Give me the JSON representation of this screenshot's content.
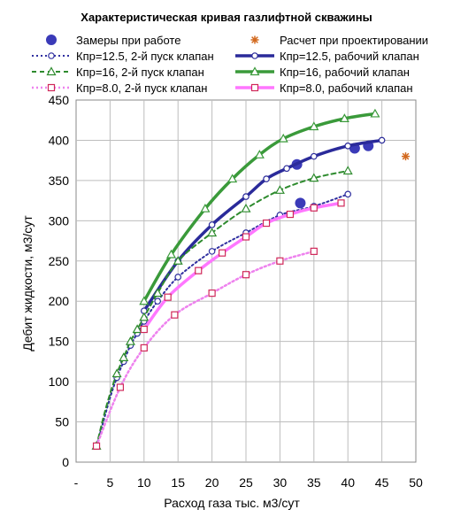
{
  "chart_data": {
    "type": "scatter",
    "title": "Характеристическая кривая газлифтной скважины",
    "xlabel": "Расход газа тыс. м3/сут",
    "ylabel": "Дебит жидкости,  м3/сут",
    "xlim": [
      0,
      50
    ],
    "ylim": [
      0,
      450
    ],
    "x_ticks": [
      "-",
      "5",
      "10",
      "15",
      "20",
      "25",
      "30",
      "35",
      "40",
      "45",
      "50"
    ],
    "y_ticks": [
      "0",
      "50",
      "100",
      "150",
      "200",
      "250",
      "300",
      "350",
      "400",
      "450"
    ],
    "grid": true,
    "legend_position": "top",
    "legend": [
      "Замеры при работе",
      "Расчет при проектировании",
      "Кпр=12.5, 2-й пуск клапан",
      "Кпр=12.5, рабочий клапан",
      "Кпр=16, 2-й пуск клапан",
      "Кпр=16, рабочий клапан",
      "Кпр=8.0, 2-й пуск клапан",
      "Кпр=8.0, рабочий клапан"
    ],
    "series": [
      {
        "name": "Замеры при работе",
        "color": "#3a3ab8",
        "marker": "dot",
        "line": "none",
        "x": [
          32.5,
          33.0,
          41.0,
          43.0
        ],
        "y": [
          370,
          322,
          390,
          393
        ]
      },
      {
        "name": "Расчет при проектировании",
        "color": "#d2691e",
        "marker": "star",
        "line": "none",
        "x": [
          48.5
        ],
        "y": [
          380
        ]
      },
      {
        "name": "Кпр=12.5, 2-й пуск клапан",
        "color": "#3030a0",
        "marker": "circle-open",
        "line": "dotted",
        "width": 2,
        "x": [
          3,
          4,
          5,
          6,
          7,
          8,
          9,
          10,
          12,
          15,
          20,
          25,
          30,
          35,
          40
        ],
        "y": [
          20,
          50,
          80,
          105,
          125,
          145,
          160,
          175,
          200,
          230,
          262,
          285,
          307,
          318,
          333
        ]
      },
      {
        "name": "Кпр=12.5, рабочий клапан",
        "color": "#2a2a9a",
        "marker": "circle-open",
        "line": "solid",
        "width": 3.5,
        "x": [
          10,
          15,
          20,
          25,
          28,
          31,
          35,
          40,
          45
        ],
        "y": [
          188,
          250,
          295,
          330,
          352,
          365,
          380,
          393,
          400
        ]
      },
      {
        "name": "Кпр=16, 2-й пуск клапан",
        "color": "#2e8b2e",
        "marker": "triangle-open",
        "line": "dashed",
        "width": 2,
        "x": [
          3,
          4,
          5,
          6,
          7,
          8,
          9,
          10,
          12,
          15,
          20,
          25,
          30,
          35,
          40
        ],
        "y": [
          20,
          55,
          85,
          110,
          130,
          150,
          165,
          180,
          210,
          250,
          285,
          315,
          338,
          353,
          362
        ]
      },
      {
        "name": "Кпр=16, рабочий клапан",
        "color": "#3a9a3a",
        "marker": "triangle-open",
        "line": "solid",
        "width": 3.5,
        "x": [
          10,
          14,
          19,
          23,
          27,
          30.5,
          35,
          39.5,
          44
        ],
        "y": [
          200,
          258,
          315,
          352,
          382,
          402,
          417,
          427,
          433
        ]
      },
      {
        "name": "Кпр=8.0, 2-й пуск клапан",
        "color": "#ee82ee",
        "marker": "square-open",
        "line": "dotted",
        "width": 2.5,
        "x": [
          3,
          6.5,
          10,
          14.5,
          20,
          25,
          30,
          35
        ],
        "y": [
          20,
          93,
          142,
          183,
          210,
          233,
          250,
          262
        ]
      },
      {
        "name": "Кпр=8.0, рабочий клапан",
        "color": "#ff77ff",
        "marker": "square-open",
        "line": "solid",
        "width": 3.5,
        "x": [
          10,
          13.5,
          18,
          21.5,
          25,
          28,
          31.5,
          35,
          39
        ],
        "y": [
          165,
          205,
          238,
          260,
          280,
          297,
          308,
          316,
          322
        ]
      }
    ]
  }
}
